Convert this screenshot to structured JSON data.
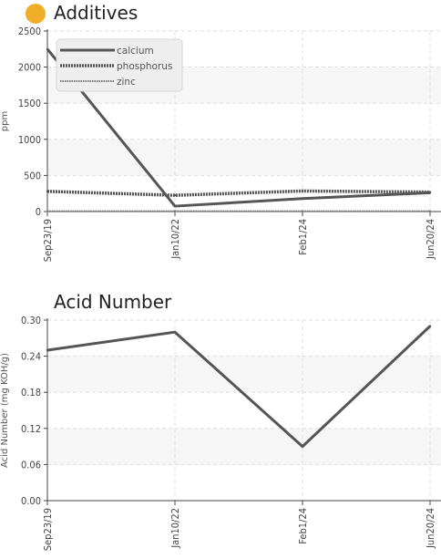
{
  "header": {
    "status_color": "#f0ad28"
  },
  "chart_data": [
    {
      "type": "line",
      "title": "Additives",
      "xlabel": "",
      "ylabel": "ppm",
      "categories": [
        "Sep23/19",
        "Jan10/22",
        "Feb1/24",
        "Jun20/24"
      ],
      "ylim": [
        0,
        2500
      ],
      "yticks": [
        0,
        500,
        1000,
        1500,
        2000,
        2500
      ],
      "grid": true,
      "legend_position": "top-left",
      "series": [
        {
          "name": "calcium",
          "values": [
            2250,
            75,
            180,
            260
          ],
          "style": "solid"
        },
        {
          "name": "phosphorus",
          "values": [
            280,
            225,
            285,
            270
          ],
          "style": "dashed"
        },
        {
          "name": "zinc",
          "values": [
            5,
            5,
            5,
            5
          ],
          "style": "dotted"
        }
      ]
    },
    {
      "type": "line",
      "title": "Acid Number",
      "xlabel": "",
      "ylabel": "Acid Number (mg KOH/g)",
      "categories": [
        "Sep23/19",
        "Jan10/22",
        "Feb1/24",
        "Jun20/24"
      ],
      "ylim": [
        0,
        0.3
      ],
      "yticks": [
        "0.00",
        "0.06",
        "0.12",
        "0.18",
        "0.24",
        "0.30"
      ],
      "grid": true,
      "series": [
        {
          "values": [
            0.25,
            0.28,
            0.09,
            0.29
          ],
          "style": "solid"
        }
      ]
    }
  ]
}
